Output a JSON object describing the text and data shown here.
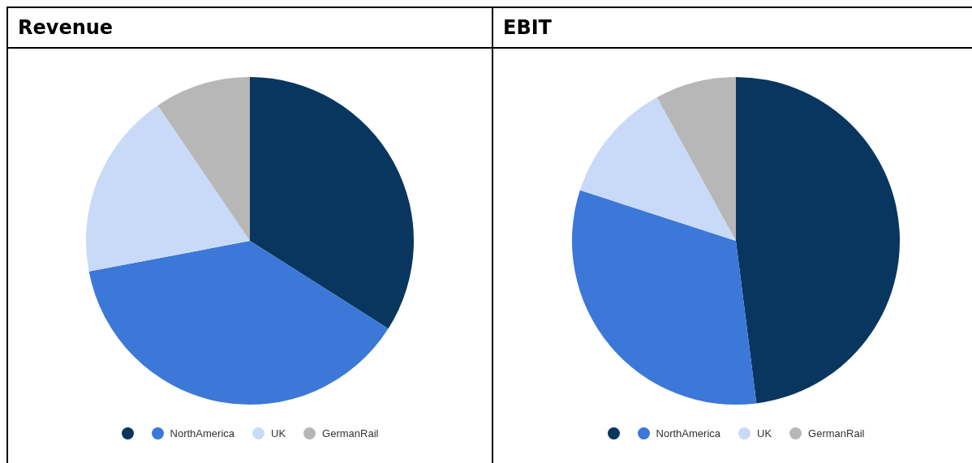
{
  "chart_data": [
    {
      "type": "pie",
      "title": "Revenue",
      "categories": [
        null,
        "NorthAmerica",
        "UK",
        "GermanRail"
      ],
      "values": [
        34,
        38,
        18.5,
        9.5
      ],
      "colors": [
        "#08365f",
        "#3c78d8",
        "#c9daf8",
        "#b7b7b7"
      ],
      "legend": "bottom"
    },
    {
      "type": "pie",
      "title": "EBIT",
      "categories": [
        null,
        "NorthAmerica",
        "UK",
        "GermanRail"
      ],
      "values": [
        48,
        32,
        12,
        8
      ],
      "colors": [
        "#08365f",
        "#3c78d8",
        "#c9daf8",
        "#b7b7b7"
      ],
      "legend": "bottom"
    }
  ]
}
